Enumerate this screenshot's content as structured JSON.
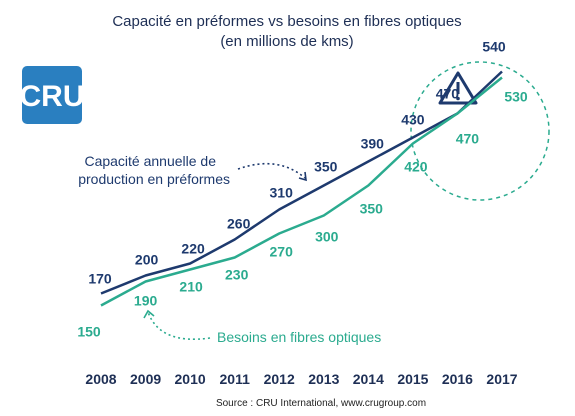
{
  "chart_data": {
    "type": "line",
    "title": "Capacité en préformes vs besoins en fibres optiques",
    "subtitle": "(en millions de kms)",
    "categories": [
      "2008",
      "2009",
      "2010",
      "2011",
      "2012",
      "2013",
      "2014",
      "2015",
      "2016",
      "2017"
    ],
    "series": [
      {
        "name": "Capacité annuelle de production en préformes",
        "values": [
          170,
          200,
          220,
          260,
          310,
          350,
          390,
          430,
          470,
          540
        ],
        "color": "#1e3a6e"
      },
      {
        "name": "Besoins en fibres optiques",
        "values": [
          150,
          190,
          210,
          230,
          270,
          300,
          350,
          420,
          470,
          530
        ],
        "color": "#2bab8f"
      }
    ],
    "ylim": [
      100,
      600
    ],
    "grid": false,
    "legend": "inline annotations"
  },
  "annotations": {
    "capacity_line1": "Capacité annuelle de",
    "capacity_line2": "production en préformes",
    "needs": "Besoins en fibres optiques",
    "warning_icon": "warning-triangle-icon"
  },
  "logo": {
    "text": "CRU",
    "color": "#2a7fc0"
  },
  "source": "Source : CRU International, www.crugroup.com",
  "colors": {
    "navy": "#1e3a6e",
    "teal": "#2bab8f",
    "title": "#1e2f55"
  }
}
